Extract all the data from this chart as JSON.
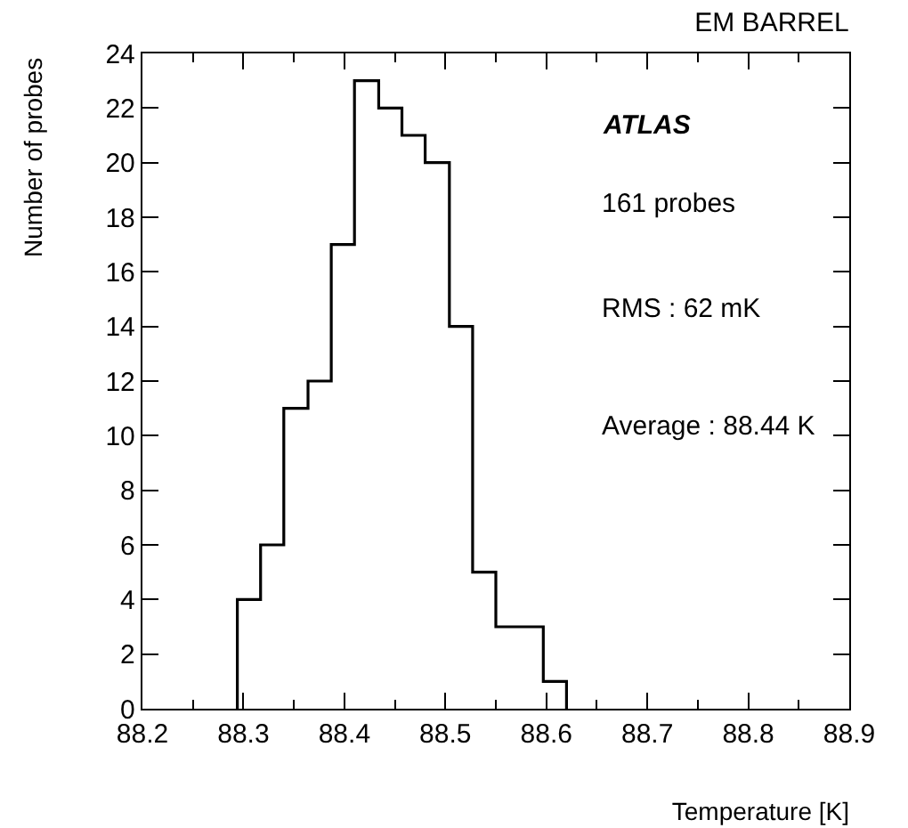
{
  "chart_data": {
    "type": "histogram",
    "title": "EM BARREL",
    "xlabel": "Temperature [K]",
    "ylabel": "Number of probes",
    "annotations": [
      "ATLAS",
      "161 probes",
      "RMS : 62 mK",
      "Average : 88.44 K"
    ],
    "bins": [
      88.294,
      88.317,
      88.34,
      88.364,
      88.387,
      88.41,
      88.434,
      88.457,
      88.48,
      88.504,
      88.527,
      88.55,
      88.574,
      88.597,
      88.62
    ],
    "values": [
      4,
      6,
      11,
      12,
      17,
      23,
      22,
      21,
      20,
      14,
      5,
      3,
      3,
      1
    ],
    "color": "#000000",
    "xlim": [
      88.2,
      88.9
    ],
    "xticks": [
      88.2,
      88.3,
      88.4,
      88.5,
      88.6,
      88.7,
      88.8,
      88.9
    ],
    "ylim": [
      0,
      24
    ],
    "yticks": [
      0,
      2,
      4,
      6,
      8,
      10,
      12,
      14,
      16,
      18,
      20,
      22,
      24
    ],
    "grid": false
  }
}
